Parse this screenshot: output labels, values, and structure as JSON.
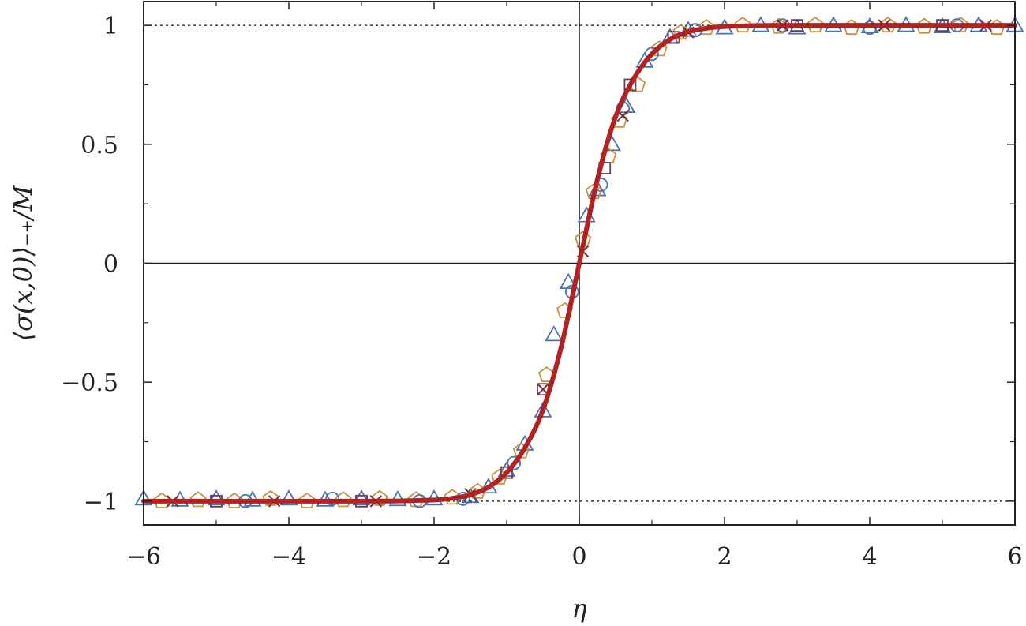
{
  "chart_data": {
    "type": "scatter",
    "xlabel": "η",
    "ylabel": "⟨σ(x,0)⟩₋₊/M",
    "xlim": [
      -6,
      6
    ],
    "ylim": [
      -1.1,
      1.1
    ],
    "x_ticks": [
      -6,
      -4,
      -2,
      0,
      2,
      4,
      6
    ],
    "x_tick_labels": [
      "−6",
      "−4",
      "−2",
      "0",
      "2",
      "4",
      "6"
    ],
    "y_ticks": [
      -1,
      -0.5,
      0,
      0.5,
      1
    ],
    "y_tick_labels": [
      "−1",
      "−0.5",
      "0",
      "0.5",
      "1"
    ],
    "reference_lines": {
      "dotted_horizontal": [
        -1,
        1
      ],
      "solid_horizontal": [
        0
      ],
      "solid_vertical": [
        0
      ]
    },
    "fit_curve": {
      "style": "thick solid",
      "color": "#b22222",
      "x": [
        -6,
        -4,
        -3,
        -2.5,
        -2,
        -1.75,
        -1.5,
        -1.25,
        -1,
        -0.75,
        -0.5,
        -0.25,
        0,
        0.25,
        0.5,
        0.75,
        1,
        1.25,
        1.5,
        1.75,
        2,
        2.5,
        3,
        4,
        6
      ],
      "y": [
        -1,
        -1,
        -1,
        -0.999,
        -0.995,
        -0.988,
        -0.973,
        -0.941,
        -0.88,
        -0.776,
        -0.616,
        -0.353,
        0,
        0.353,
        0.616,
        0.776,
        0.88,
        0.941,
        0.973,
        0.988,
        0.995,
        0.999,
        1,
        1,
        1
      ]
    },
    "series": [
      {
        "marker": "triangle",
        "color": "#4a72b0",
        "x": [
          -6,
          -5.5,
          -5,
          -4.5,
          -4,
          -3.5,
          -3,
          -2.5,
          -2,
          -1.5,
          -1.25,
          -1,
          -0.75,
          -0.5,
          -0.35,
          -0.15,
          0.1,
          0.25,
          0.45,
          0.65,
          0.9,
          1.25,
          1.5,
          2,
          2.5,
          3,
          3.5,
          4,
          4.5,
          5,
          5.5,
          6
        ],
        "y": [
          -0.99,
          -0.995,
          -0.99,
          -0.995,
          -0.99,
          -0.995,
          -0.99,
          -0.993,
          -0.99,
          -0.98,
          -0.94,
          -0.87,
          -0.76,
          -0.62,
          -0.3,
          -0.08,
          0.2,
          0.31,
          0.5,
          0.66,
          0.85,
          0.95,
          0.98,
          0.99,
          1.0,
          0.99,
          1.0,
          0.995,
          1.0,
          0.995,
          1.0,
          1.0
        ]
      },
      {
        "marker": "pentagon",
        "color": "#c9913a",
        "x": [
          -5.75,
          -5.25,
          -4.75,
          -4.25,
          -3.75,
          -3.25,
          -2.75,
          -2.25,
          -1.75,
          -1.4,
          -1.1,
          -0.8,
          -0.45,
          -0.2,
          0.05,
          0.2,
          0.4,
          0.55,
          0.8,
          1.1,
          1.4,
          1.75,
          2.25,
          2.75,
          3.25,
          3.75,
          4.25,
          4.75,
          5.25,
          5.75
        ],
        "y": [
          -1.0,
          -0.995,
          -1.0,
          -0.99,
          -1.0,
          -0.995,
          -0.99,
          -0.995,
          -0.985,
          -0.96,
          -0.9,
          -0.79,
          -0.47,
          -0.2,
          0.1,
          0.3,
          0.45,
          0.6,
          0.75,
          0.9,
          0.97,
          0.99,
          1.0,
          0.995,
          1.0,
          0.99,
          1.0,
          0.995,
          1.0,
          0.99
        ]
      },
      {
        "marker": "circle",
        "color": "#4a72b0",
        "x": [
          -4.6,
          -3.4,
          -2.2,
          -1.6,
          -0.9,
          -0.1,
          0.3,
          0.6,
          1.0,
          1.6,
          2.8,
          4.0,
          5.2
        ],
        "y": [
          -1.0,
          -0.99,
          -1.0,
          -0.99,
          -0.84,
          -0.12,
          0.33,
          0.65,
          0.88,
          0.98,
          1.0,
          0.99,
          1.0
        ]
      },
      {
        "marker": "square",
        "color": "#6b3d57",
        "x": [
          -5.0,
          -3.0,
          -1.0,
          -0.5,
          0.35,
          0.7,
          1.3,
          3.0,
          5.0
        ],
        "y": [
          -1.0,
          -1.0,
          -0.88,
          -0.53,
          0.4,
          0.75,
          0.95,
          1.0,
          1.0
        ]
      },
      {
        "marker": "cross",
        "color": "#7a2d2d",
        "x": [
          -5.6,
          -4.2,
          -2.8,
          -1.5,
          -0.5,
          0.05,
          0.6,
          1.5,
          2.8,
          4.2,
          5.6
        ],
        "y": [
          -1.0,
          -1.0,
          -1.0,
          -0.97,
          -0.53,
          0.05,
          0.62,
          0.97,
          1.0,
          1.0,
          1.0
        ]
      }
    ]
  }
}
